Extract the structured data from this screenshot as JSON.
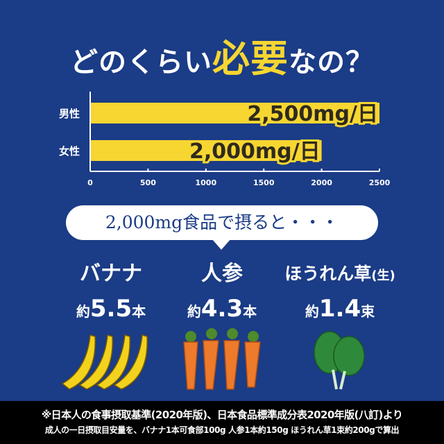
{
  "title": {
    "pre": "どのくらい",
    "em": "必要",
    "post": "なの？"
  },
  "chart_data": {
    "type": "bar",
    "orientation": "horizontal",
    "categories": [
      "男性",
      "女性"
    ],
    "values": [
      2500,
      2000
    ],
    "data_labels": [
      "2,500mg/日",
      "2,000mg/日"
    ],
    "xlim": [
      0,
      2500
    ],
    "xticks": [
      "0",
      "500",
      "1000",
      "1500",
      "2000",
      "2500"
    ],
    "grid": false,
    "colors": {
      "bar": "#f7d631",
      "label": "#2f2a1e"
    }
  },
  "bubble": "2,000mg食品で摂ると・・・",
  "foods": [
    {
      "name": "バナナ",
      "sub": "",
      "prefix": "約",
      "amount": "5.5",
      "unit": "本"
    },
    {
      "name": "人参",
      "sub": "",
      "prefix": "約",
      "amount": "4.3",
      "unit": "本"
    },
    {
      "name": "ほうれん草",
      "sub": "(生)",
      "prefix": "約",
      "amount": "1.4",
      "unit": "束"
    }
  ],
  "footer": {
    "line1": "※日本人の食事摂取基準(2020年版)、日本食品標準成分表2020年版(八訂)より",
    "line2": "成人の一日摂取目安量を、バナナ1本可食部100g 人参1本約150g ほうれん草1束約200gで算出"
  }
}
